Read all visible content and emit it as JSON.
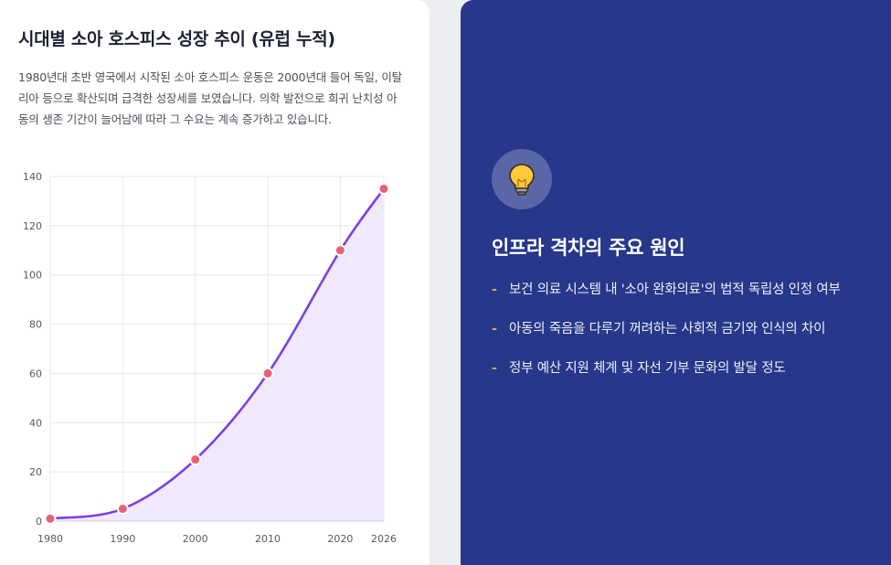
{
  "left": {
    "title": "시대별 소아 호스피스 성장 추이 (유럽 누적)",
    "description": "1980년대 초반 영국에서 시작된 소아 호스피스 운동은 2000년대 들어 독일, 이탈리아 등으로 확산되며 급격한 성장세를 보였습니다. 의학 발전으로 희귀 난치성 아동의 생존 기간이 늘어남에 따라 그 수요는 계속 증가하고 있습니다."
  },
  "chart_data": {
    "type": "area",
    "x": [
      1980,
      1990,
      2000,
      2010,
      2020,
      2026
    ],
    "y": [
      1,
      5,
      25,
      60,
      110,
      135
    ],
    "x_tick_labels": [
      "1980",
      "1990",
      "2000",
      "2010",
      "2020",
      "2026"
    ],
    "y_tick_labels": [
      "0",
      "20",
      "40",
      "60",
      "80",
      "100",
      "120",
      "140"
    ],
    "ylim": [
      0,
      140
    ],
    "xlim": [
      1980,
      2026
    ],
    "grid": true,
    "colors": {
      "line": "#7b3fe0",
      "fill": "#f0e8fd",
      "point": "#ee5f73",
      "grid": "#e6e8ee"
    }
  },
  "right": {
    "icon": "lightbulb-icon",
    "title": "인프라 격차의 주요 원인",
    "bullet_marker": "-",
    "items": [
      "보건 의료 시스템 내 '소아 완화의료'의 법적 독립성 인정 여부",
      "아동의 죽음을 다루기 꺼려하는 사회적 금기와 인식의 차이",
      "정부 예산 지원 체계 및 자선 기부 문화의 발달 정도"
    ],
    "colors": {
      "background": "#27378a",
      "accent": "#f0a24a"
    }
  }
}
